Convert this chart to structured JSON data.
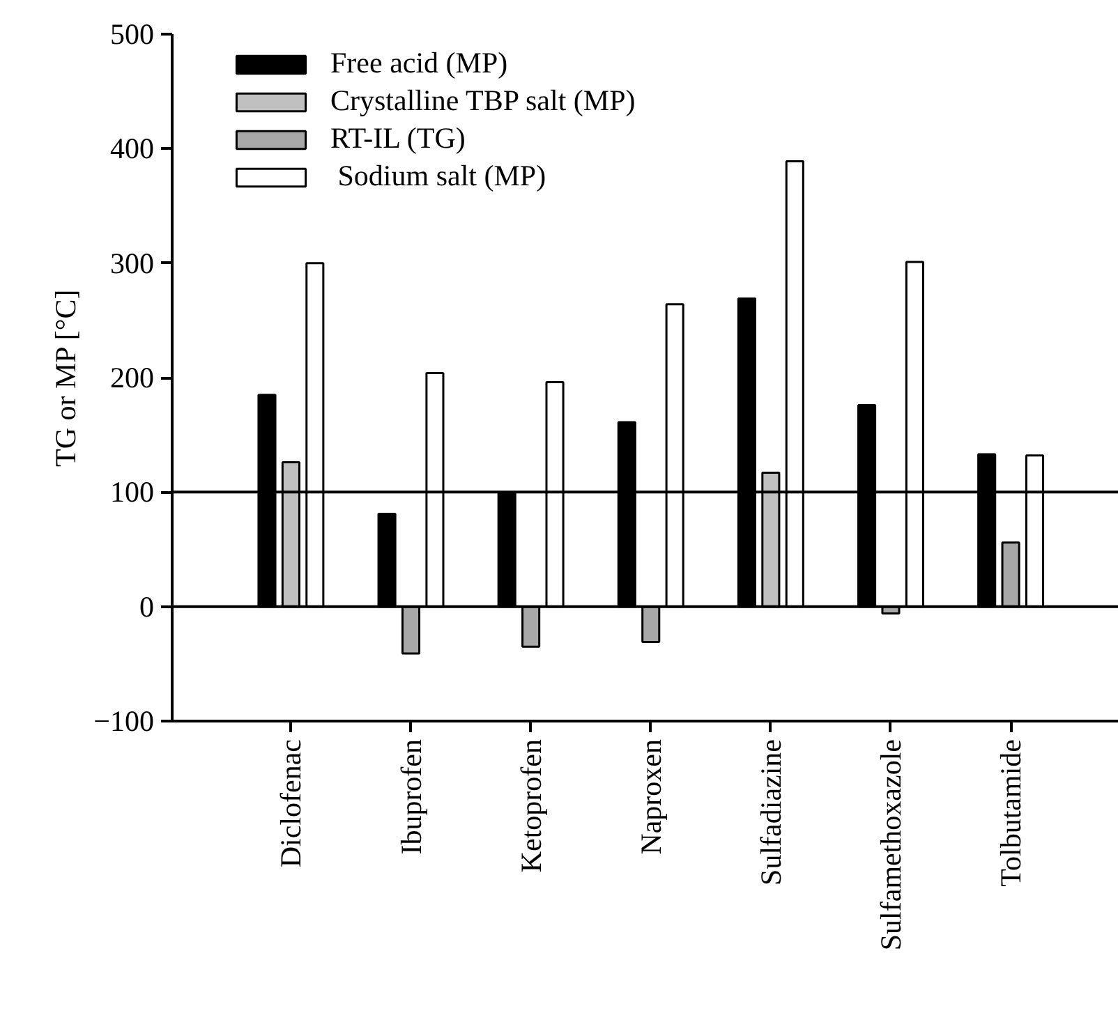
{
  "chart_data": {
    "type": "bar",
    "ylabel": "TG or MP [°C]",
    "categories": [
      "Diclofenac",
      "Ibuprofen",
      "Ketoprofen",
      "Naproxen",
      "Sulfadiazine",
      "Sulfamethoxazole",
      "Tolbutamide"
    ],
    "series": [
      {
        "name": "Free acid (MP)",
        "color": "#000000",
        "values": [
          185,
          81,
          99,
          161,
          269,
          176,
          133
        ]
      },
      {
        "name": "Crystalline TBP salt (MP)",
        "color": "#c0c0c0",
        "values": [
          126,
          null,
          null,
          null,
          117,
          null,
          null
        ]
      },
      {
        "name": "RT-IL (TG)",
        "color": "#a8a8a8",
        "values": [
          null,
          -41,
          -35,
          -31,
          null,
          -6,
          56
        ]
      },
      {
        "name": " Sodium salt (MP)",
        "color": "#ffffff",
        "values": [
          300,
          204,
          196,
          264,
          389,
          301,
          132
        ]
      }
    ],
    "ylim": [
      -100,
      500
    ],
    "yticks": [
      -100,
      0,
      100,
      200,
      300,
      400,
      500
    ],
    "ref_lines": [
      {
        "axis": "y",
        "value": 0
      },
      {
        "axis": "y",
        "value": 100
      }
    ],
    "grid": false,
    "legend": "top left"
  }
}
